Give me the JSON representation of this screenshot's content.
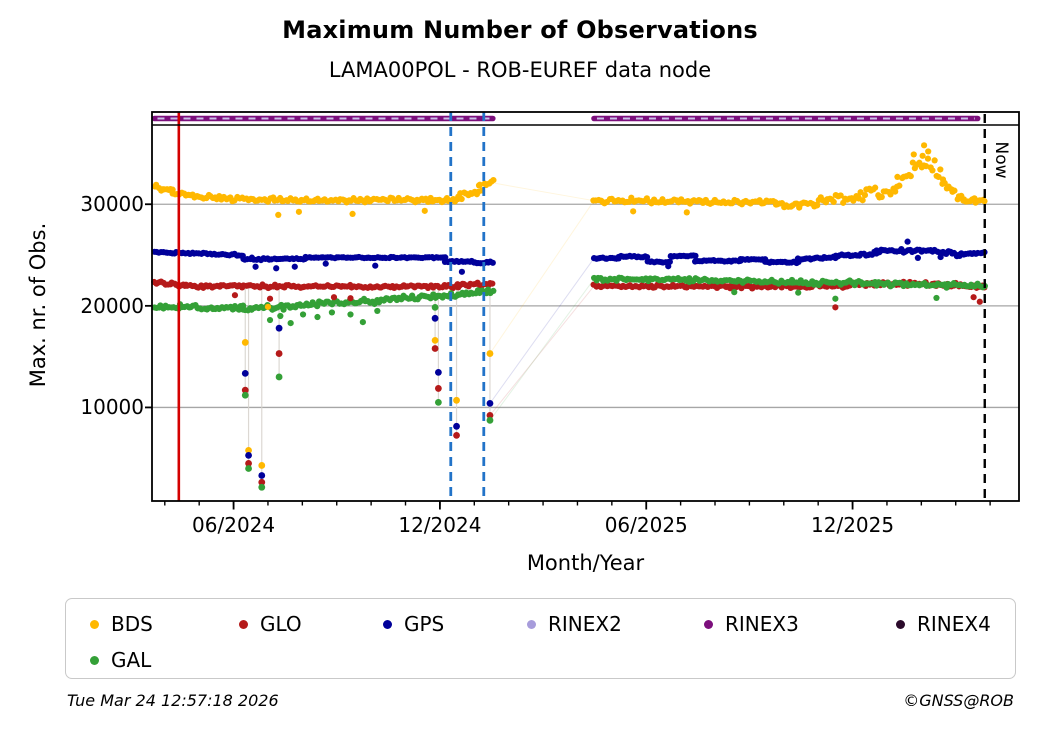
{
  "header": {
    "title": "Maximum Number of Observations",
    "subtitle": "LAMA00POL - ROB-EUREF data node"
  },
  "footer": {
    "timestamp": "Tue Mar 24 12:57:18 2026",
    "copyright": "©GNSS@ROB"
  },
  "legend": {
    "items": [
      {
        "label": "BDS",
        "color": "#FFB800"
      },
      {
        "label": "GLO",
        "color": "#B51A1A"
      },
      {
        "label": "GPS",
        "color": "#00009A"
      },
      {
        "label": "RINEX2",
        "color": "#A79CDB"
      },
      {
        "label": "RINEX3",
        "color": "#7C0F7C"
      },
      {
        "label": "RINEX4",
        "color": "#2B0A2B"
      },
      {
        "label": "GAL",
        "color": "#34A037"
      }
    ],
    "row1_x": [
      24,
      173,
      317,
      461,
      638,
      830
    ],
    "row1_y": 12,
    "row2_y": 48
  },
  "chart_data": {
    "type": "scatter",
    "title": "Maximum Number of Observations",
    "subtitle": "LAMA00POL - ROB-EUREF data node",
    "xlabel": "Month/Year",
    "ylabel": "Max. nr. of Obs.",
    "now_label": "Now",
    "grid": true,
    "x_domain": [
      2024.219,
      2026.32
    ],
    "y_domain": [
      790,
      37800
    ],
    "x_ticks_major": [
      {
        "label": "06/2024",
        "t": 2024.4167
      },
      {
        "label": "12/2024",
        "t": 2024.9167
      },
      {
        "label": "06/2025",
        "t": 2025.4167
      },
      {
        "label": "12/2025",
        "t": 2025.9167
      }
    ],
    "x_minor_from": [
      2024,
      4
    ],
    "x_minor_to": [
      2026,
      4
    ],
    "y_ticks": [
      {
        "label": "10000",
        "v": 10000
      },
      {
        "label": "20000",
        "v": 20000
      },
      {
        "label": "30000",
        "v": 30000
      }
    ],
    "series_colors": {
      "BDS": "#FFB800",
      "GLO": "#B51A1A",
      "GPS": "#00009A",
      "GAL": "#34A037"
    },
    "markers": {
      "red_line_t": 2024.284,
      "red_line_color": "#D40000",
      "blue_dashed_t": [
        2024.943,
        2025.023
      ],
      "blue_dashed_color": "#2273C8",
      "now_t": 2026.237,
      "now_color": "#000000"
    },
    "rinex3_strip": {
      "color": "#7C0F7C",
      "overlay_color": "#C9BFE8",
      "segments": [
        [
          2024.225,
          2025.045
        ],
        [
          2025.29,
          2026.22
        ]
      ]
    },
    "bands": [
      [
        "BDS",
        2024.225,
        2024.27,
        31700,
        31400,
        300
      ],
      [
        "BDS",
        2024.27,
        2024.35,
        31150,
        30650,
        330
      ],
      [
        "BDS",
        2024.35,
        2024.62,
        30600,
        30400,
        330
      ],
      [
        "BDS",
        2024.62,
        2024.96,
        30420,
        30420,
        330
      ],
      [
        "BDS",
        2024.96,
        2025.01,
        30700,
        31300,
        400
      ],
      [
        "BDS",
        2025.01,
        2025.045,
        31500,
        32100,
        450
      ],
      [
        "BDS",
        2025.29,
        2025.56,
        30350,
        30300,
        330
      ],
      [
        "BDS",
        2025.56,
        2025.73,
        30250,
        30150,
        330
      ],
      [
        "BDS",
        2025.73,
        2025.83,
        29950,
        29950,
        340
      ],
      [
        "BDS",
        2025.83,
        2025.93,
        30350,
        30700,
        550
      ],
      [
        "BDS",
        2025.93,
        2026.025,
        30900,
        31500,
        800
      ],
      [
        "BDS",
        2026.025,
        2026.085,
        32300,
        34200,
        900
      ],
      [
        "BDS",
        2026.085,
        2026.135,
        34200,
        33000,
        1000
      ],
      [
        "BDS",
        2026.135,
        2026.185,
        31900,
        30700,
        650
      ],
      [
        "BDS",
        2026.185,
        2026.237,
        30400,
        30450,
        400
      ],
      [
        "GPS",
        2024.225,
        2024.44,
        25300,
        25000,
        110
      ],
      [
        "GPS",
        2024.44,
        2024.59,
        24620,
        24620,
        150
      ],
      [
        "GPS",
        2024.59,
        2024.93,
        24760,
        24740,
        80
      ],
      [
        "GPS",
        2024.93,
        2025.0,
        24380,
        24350,
        110
      ],
      [
        "GPS",
        2025.0,
        2025.045,
        24280,
        24240,
        130
      ],
      [
        "GPS",
        2025.29,
        2025.35,
        24680,
        24680,
        90
      ],
      [
        "GPS",
        2025.35,
        2025.42,
        24870,
        24830,
        90
      ],
      [
        "GPS",
        2025.42,
        2025.475,
        24330,
        24330,
        90
      ],
      [
        "GPS",
        2025.475,
        2025.535,
        24900,
        24880,
        90
      ],
      [
        "GPS",
        2025.535,
        2025.645,
        24440,
        24420,
        90
      ],
      [
        "GPS",
        2025.645,
        2025.705,
        24560,
        24520,
        90
      ],
      [
        "GPS",
        2025.705,
        2025.785,
        24300,
        24300,
        100
      ],
      [
        "GPS",
        2025.785,
        2025.875,
        24600,
        24750,
        130
      ],
      [
        "GPS",
        2025.875,
        2025.975,
        24950,
        25150,
        220
      ],
      [
        "GPS",
        2025.975,
        2026.105,
        25350,
        25480,
        300
      ],
      [
        "GPS",
        2026.105,
        2026.175,
        25450,
        25050,
        260
      ],
      [
        "GPS",
        2026.175,
        2026.237,
        25050,
        25250,
        160
      ],
      [
        "GLO",
        2024.225,
        2024.3,
        22300,
        22050,
        230
      ],
      [
        "GLO",
        2024.3,
        2024.96,
        21950,
        21880,
        200
      ],
      [
        "GLO",
        2024.96,
        2025.045,
        22050,
        22180,
        230
      ],
      [
        "GLO",
        2025.29,
        2025.62,
        21950,
        21900,
        180
      ],
      [
        "GLO",
        2025.62,
        2025.91,
        21880,
        21960,
        210
      ],
      [
        "GLO",
        2025.91,
        2026.12,
        22080,
        22160,
        270
      ],
      [
        "GLO",
        2026.12,
        2026.237,
        22080,
        21950,
        270
      ],
      [
        "GAL",
        2024.225,
        2024.33,
        19950,
        19900,
        260
      ],
      [
        "GAL",
        2024.33,
        2024.44,
        19850,
        19800,
        300
      ],
      [
        "GAL",
        2024.44,
        2024.56,
        19750,
        19900,
        420
      ],
      [
        "GAL",
        2024.56,
        2024.78,
        20050,
        20500,
        330
      ],
      [
        "GAL",
        2024.78,
        2024.96,
        20650,
        21050,
        280
      ],
      [
        "GAL",
        2024.96,
        2025.045,
        21200,
        21380,
        250
      ],
      [
        "GAL",
        2025.29,
        2025.52,
        22620,
        22550,
        220
      ],
      [
        "GAL",
        2025.52,
        2025.77,
        22500,
        22380,
        250
      ],
      [
        "GAL",
        2025.77,
        2025.97,
        22350,
        22280,
        290
      ],
      [
        "GAL",
        2025.97,
        2026.237,
        22150,
        22020,
        330
      ]
    ],
    "outliers": [
      [
        "GPS",
        2024.47,
        23850
      ],
      [
        "GPS",
        2024.52,
        23700
      ],
      [
        "GPS",
        2024.565,
        23850
      ],
      [
        "GPS",
        2024.64,
        24150
      ],
      [
        "GPS",
        2024.76,
        23950
      ],
      [
        "GPS",
        2024.97,
        23350
      ],
      [
        "GPS",
        2025.47,
        23900
      ],
      [
        "GPS",
        2026.05,
        26320
      ],
      [
        "GPS",
        2026.075,
        24720
      ],
      [
        "GPS",
        2026.13,
        24800
      ],
      [
        "GAL",
        2024.505,
        18600
      ],
      [
        "GAL",
        2024.53,
        19000
      ],
      [
        "GAL",
        2024.555,
        18300
      ],
      [
        "GAL",
        2024.585,
        19150
      ],
      [
        "GAL",
        2024.62,
        18900
      ],
      [
        "GAL",
        2024.655,
        19350
      ],
      [
        "GAL",
        2024.7,
        19150
      ],
      [
        "GAL",
        2024.73,
        18400
      ],
      [
        "GAL",
        2024.765,
        19500
      ],
      [
        "GAL",
        2025.63,
        21350
      ],
      [
        "GAL",
        2025.785,
        21300
      ],
      [
        "GAL",
        2025.875,
        20700
      ],
      [
        "GAL",
        2026.12,
        20780
      ],
      [
        "GLO",
        2024.42,
        21050
      ],
      [
        "GLO",
        2024.505,
        20700
      ],
      [
        "GLO",
        2024.66,
        20850
      ],
      [
        "GLO",
        2024.7,
        20750
      ],
      [
        "GLO",
        2025.875,
        19850
      ],
      [
        "GLO",
        2026.21,
        20850
      ],
      [
        "GLO",
        2026.225,
        20400
      ],
      [
        "BDS",
        2024.5,
        19900
      ],
      [
        "BDS",
        2024.525,
        28950
      ],
      [
        "BDS",
        2024.575,
        29250
      ],
      [
        "BDS",
        2024.705,
        29050
      ],
      [
        "BDS",
        2024.88,
        29350
      ],
      [
        "BDS",
        2025.385,
        29300
      ],
      [
        "BDS",
        2025.515,
        29200
      ],
      [
        "BDS",
        2026.065,
        34900
      ],
      [
        "BDS",
        2026.09,
        35800
      ],
      [
        "BDS",
        2026.1,
        35200
      ]
    ],
    "anomalies": [
      {
        "t": 2024.445,
        "pts": [
          [
            "BDS",
            16400
          ],
          [
            "GPS",
            13350
          ],
          [
            "GLO",
            11700
          ],
          [
            "GAL",
            11200
          ]
        ]
      },
      {
        "t": 2024.453,
        "pts": [
          [
            "BDS",
            5770
          ],
          [
            "GPS",
            5280
          ],
          [
            "GLO",
            4490
          ],
          [
            "GAL",
            3990
          ]
        ]
      },
      {
        "t": 2024.485,
        "pts": [
          [
            "BDS",
            4290
          ],
          [
            "GPS",
            3300
          ],
          [
            "GLO",
            2630
          ],
          [
            "GAL",
            2140
          ]
        ]
      },
      {
        "t": 2024.527,
        "pts": [
          [
            "GPS",
            17800
          ],
          [
            "GLO",
            15300
          ],
          [
            "GAL",
            13000
          ]
        ]
      },
      {
        "t": 2024.905,
        "pts": [
          [
            "GAL",
            19850
          ],
          [
            "GPS",
            18770
          ],
          [
            "BDS",
            16600
          ],
          [
            "GLO",
            15800
          ]
        ]
      },
      {
        "t": 2024.913,
        "pts": [
          [
            "GPS",
            13450
          ],
          [
            "GLO",
            11870
          ],
          [
            "GAL",
            10500
          ]
        ]
      },
      {
        "t": 2024.957,
        "pts": [
          [
            "BDS",
            10700
          ],
          [
            "GPS",
            8140
          ],
          [
            "GLO",
            7250
          ]
        ]
      },
      {
        "t": 2025.038,
        "pts": [
          [
            "BDS",
            15300
          ],
          [
            "GPS",
            10400
          ],
          [
            "GLO",
            9220
          ],
          [
            "GAL",
            8730
          ]
        ]
      }
    ],
    "gap_links": [
      [
        "BDS",
        2025.038,
        15300,
        2025.29,
        30350
      ],
      [
        "GPS",
        2025.038,
        10400,
        2025.29,
        24680
      ],
      [
        "GLO",
        2025.038,
        9220,
        2025.29,
        21950
      ],
      [
        "GAL",
        2025.038,
        8730,
        2025.29,
        22620
      ],
      [
        "BDS",
        2025.045,
        32100,
        2025.29,
        30350
      ]
    ]
  }
}
